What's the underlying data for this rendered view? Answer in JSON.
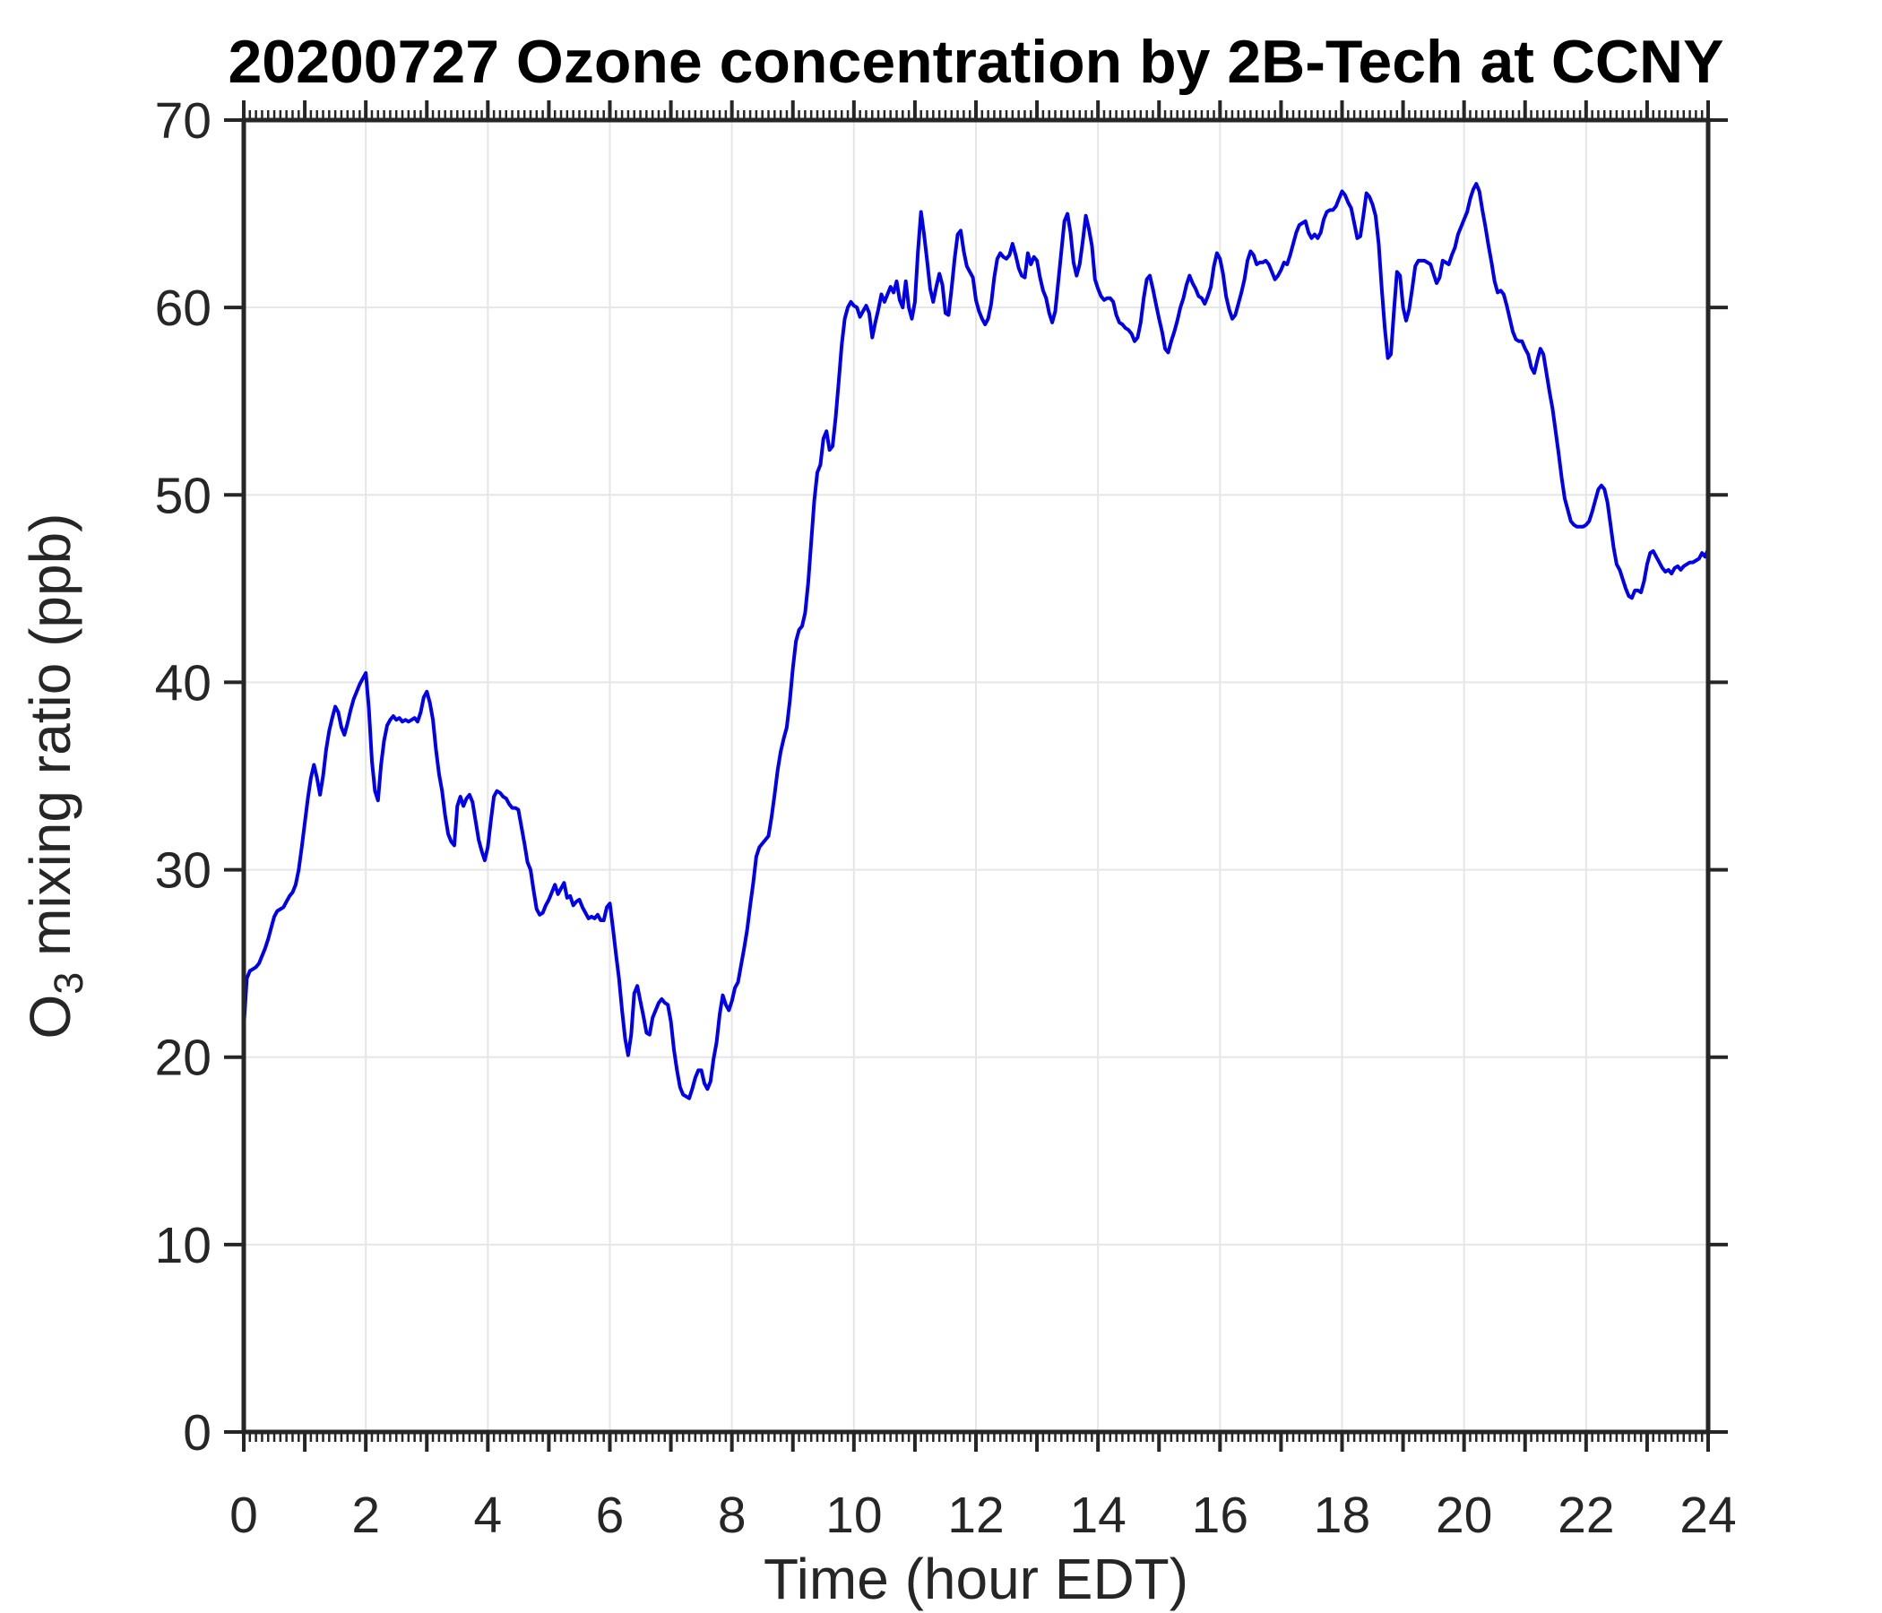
{
  "chart_data": {
    "type": "line",
    "title": "20200727 Ozone concentration by 2B-Tech at CCNY",
    "xlabel": "Time (hour EDT)",
    "ylabel": {
      "base": "O",
      "sub": "3",
      "rest": " mixing ratio (ppb)"
    },
    "xlim": [
      0,
      24
    ],
    "ylim": [
      0,
      70
    ],
    "x_tick_labels": [
      "0",
      "2",
      "4",
      "6",
      "8",
      "10",
      "12",
      "14",
      "16",
      "18",
      "20",
      "22",
      "24"
    ],
    "x_major_tick_values": [
      0,
      1,
      2,
      3,
      4,
      5,
      6,
      7,
      8,
      9,
      10,
      11,
      12,
      13,
      14,
      15,
      16,
      17,
      18,
      19,
      20,
      21,
      22,
      23,
      24
    ],
    "x_labeled_tick_values": [
      0,
      2,
      4,
      6,
      8,
      10,
      12,
      14,
      16,
      18,
      20,
      22,
      24
    ],
    "x_minor_tick_step": 0.1,
    "y_tick_labels": [
      "0",
      "10",
      "20",
      "30",
      "40",
      "50",
      "60",
      "70"
    ],
    "y_major_tick_values": [
      0,
      10,
      20,
      30,
      40,
      50,
      60,
      70
    ],
    "grid": true,
    "grid_x_values": [
      2,
      4,
      6,
      8,
      10,
      12,
      14,
      16,
      18,
      20,
      22
    ],
    "grid_y_values": [
      10,
      20,
      30,
      40,
      50,
      60
    ],
    "legend": "none",
    "colors": {
      "line": "#0000EE",
      "axis": "#262626",
      "grid": "#e6e6e6",
      "title": "#000000",
      "background": "#ffffff"
    },
    "series": [
      {
        "name": "ozone_mixing_ratio_ppb",
        "x_start": 0,
        "x_step": 0.05,
        "values": [
          21.6,
          24.2,
          24.6,
          24.7,
          24.8,
          25.0,
          25.4,
          25.8,
          26.3,
          26.9,
          27.5,
          27.8,
          27.9,
          28.0,
          28.3,
          28.6,
          28.8,
          29.2,
          30.0,
          31.2,
          32.5,
          33.8,
          34.9,
          35.6,
          34.9,
          34.0,
          35.0,
          36.4,
          37.4,
          38.1,
          38.7,
          38.4,
          37.6,
          37.2,
          37.8,
          38.5,
          39.1,
          39.5,
          39.9,
          40.2,
          40.5,
          38.6,
          35.8,
          34.2,
          33.7,
          35.6,
          36.9,
          37.7,
          38.0,
          38.2,
          38.0,
          38.1,
          37.9,
          38.0,
          37.9,
          38.0,
          38.1,
          37.9,
          38.4,
          39.2,
          39.5,
          38.9,
          38.0,
          36.4,
          35.1,
          34.2,
          32.9,
          31.9,
          31.5,
          31.3,
          33.4,
          33.9,
          33.4,
          33.8,
          34.0,
          33.6,
          32.6,
          31.6,
          31.0,
          30.5,
          31.2,
          32.6,
          33.9,
          34.2,
          34.1,
          33.9,
          33.8,
          33.5,
          33.3,
          33.3,
          33.2,
          32.3,
          31.4,
          30.4,
          30.0,
          28.9,
          27.9,
          27.6,
          27.7,
          28.1,
          28.4,
          28.8,
          29.2,
          28.7,
          29.0,
          29.3,
          28.5,
          28.6,
          28.1,
          28.3,
          28.4,
          28.0,
          27.7,
          27.4,
          27.5,
          27.4,
          27.6,
          27.3,
          27.3,
          28.0,
          28.2,
          26.9,
          25.5,
          24.2,
          22.5,
          21.0,
          20.1,
          21.2,
          23.4,
          23.8,
          23.0,
          22.2,
          21.3,
          21.2,
          22.1,
          22.5,
          22.9,
          23.1,
          22.9,
          22.8,
          21.9,
          20.4,
          19.3,
          18.4,
          18.0,
          17.9,
          17.8,
          18.3,
          18.9,
          19.3,
          19.3,
          18.6,
          18.3,
          18.7,
          19.9,
          20.8,
          22.3,
          23.3,
          22.8,
          22.5,
          23.0,
          23.7,
          24.0,
          24.9,
          25.8,
          26.8,
          28.1,
          29.3,
          30.7,
          31.2,
          31.4,
          31.6,
          31.8,
          32.8,
          34.0,
          35.3,
          36.3,
          37.0,
          37.6,
          39.0,
          40.8,
          42.2,
          42.8,
          43.0,
          43.7,
          45.3,
          47.5,
          49.7,
          51.2,
          51.6,
          53.0,
          53.4,
          52.4,
          52.6,
          54.1,
          56.0,
          58.0,
          59.4,
          60.0,
          60.3,
          60.1,
          60.0,
          59.5,
          59.8,
          60.1,
          59.7,
          58.4,
          59.2,
          59.9,
          60.7,
          60.3,
          60.7,
          61.1,
          60.8,
          61.4,
          60.4,
          60.0,
          61.4,
          60.0,
          59.4,
          60.3,
          63.0,
          65.1,
          63.9,
          62.5,
          61.0,
          60.3,
          61.1,
          61.8,
          61.2,
          59.7,
          59.6,
          61.0,
          62.6,
          63.9,
          64.1,
          63.0,
          62.2,
          61.9,
          61.6,
          60.4,
          59.8,
          59.4,
          59.1,
          59.4,
          60.2,
          61.6,
          62.6,
          62.9,
          62.7,
          62.6,
          62.8,
          63.4,
          62.8,
          62.1,
          61.7,
          61.6,
          62.9,
          62.3,
          62.7,
          62.5,
          61.6,
          60.9,
          60.5,
          59.7,
          59.2,
          59.8,
          61.4,
          63.0,
          64.6,
          65.0,
          64.0,
          62.4,
          61.7,
          62.3,
          63.5,
          64.9,
          64.2,
          63.3,
          61.5,
          61.0,
          60.6,
          60.4,
          60.5,
          60.5,
          60.3,
          59.6,
          59.2,
          59.1,
          58.9,
          58.8,
          58.6,
          58.2,
          58.4,
          59.2,
          60.5,
          61.5,
          61.7,
          61.0,
          60.2,
          59.4,
          58.7,
          57.8,
          57.6,
          58.2,
          58.7,
          59.3,
          60.0,
          60.5,
          61.2,
          61.7,
          61.3,
          61.0,
          60.6,
          60.5,
          60.2,
          60.6,
          61.1,
          62.2,
          62.9,
          62.6,
          61.8,
          60.6,
          59.9,
          59.4,
          59.6,
          60.2,
          60.8,
          61.5,
          62.5,
          63.0,
          62.8,
          62.3,
          62.4,
          62.4,
          62.5,
          62.3,
          61.9,
          61.5,
          61.7,
          62.0,
          62.4,
          62.3,
          62.8,
          63.4,
          64.0,
          64.4,
          64.5,
          64.6,
          64.0,
          63.7,
          63.9,
          63.7,
          64.0,
          64.7,
          65.1,
          65.2,
          65.2,
          65.4,
          65.8,
          66.2,
          66.0,
          65.6,
          65.3,
          64.5,
          63.7,
          63.8,
          64.9,
          66.1,
          65.9,
          65.5,
          64.9,
          63.4,
          61.0,
          58.9,
          57.3,
          57.5,
          59.8,
          61.9,
          61.7,
          60.0,
          59.3,
          59.9,
          61.0,
          62.2,
          62.5,
          62.5,
          62.5,
          62.4,
          62.3,
          61.8,
          61.3,
          61.6,
          62.5,
          62.4,
          62.3,
          62.8,
          63.2,
          63.9,
          64.3,
          64.7,
          65.1,
          65.8,
          66.3,
          66.6,
          66.2,
          65.2,
          64.3,
          63.3,
          62.4,
          61.4,
          60.8,
          60.9,
          60.7,
          60.1,
          59.4,
          58.7,
          58.3,
          58.2,
          58.2,
          57.8,
          57.5,
          56.8,
          56.5,
          57.2,
          57.8,
          57.5,
          56.5,
          55.5,
          54.6,
          53.4,
          52.2,
          50.9,
          49.8,
          49.2,
          48.6,
          48.4,
          48.3,
          48.3,
          48.3,
          48.4,
          48.6,
          49.1,
          49.7,
          50.3,
          50.5,
          50.3,
          49.6,
          48.4,
          47.2,
          46.3,
          46.0,
          45.5,
          45.0,
          44.6,
          44.5,
          44.9,
          44.9,
          44.8,
          45.4,
          46.3,
          46.9,
          47.0,
          46.7,
          46.4,
          46.1,
          45.9,
          46.0,
          45.8,
          46.1,
          46.2,
          46.0,
          46.2,
          46.3,
          46.4,
          46.4,
          46.5,
          46.6,
          46.9,
          46.7,
          47.1
        ]
      }
    ]
  }
}
